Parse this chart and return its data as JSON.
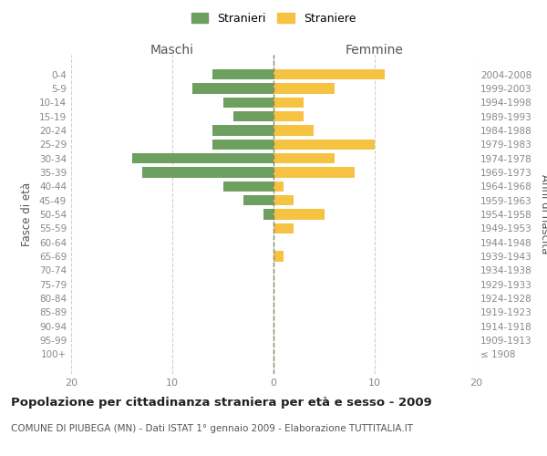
{
  "age_groups": [
    "100+",
    "95-99",
    "90-94",
    "85-89",
    "80-84",
    "75-79",
    "70-74",
    "65-69",
    "60-64",
    "55-59",
    "50-54",
    "45-49",
    "40-44",
    "35-39",
    "30-34",
    "25-29",
    "20-24",
    "15-19",
    "10-14",
    "5-9",
    "0-4"
  ],
  "birth_years": [
    "≤ 1908",
    "1909-1913",
    "1914-1918",
    "1919-1923",
    "1924-1928",
    "1929-1933",
    "1934-1938",
    "1939-1943",
    "1944-1948",
    "1949-1953",
    "1954-1958",
    "1959-1963",
    "1964-1968",
    "1969-1973",
    "1974-1978",
    "1979-1983",
    "1984-1988",
    "1989-1993",
    "1994-1998",
    "1999-2003",
    "2004-2008"
  ],
  "maschi": [
    0,
    0,
    0,
    0,
    0,
    0,
    0,
    0,
    0,
    0,
    1,
    3,
    5,
    13,
    14,
    6,
    6,
    4,
    5,
    8,
    6
  ],
  "femmine": [
    0,
    0,
    0,
    0,
    0,
    0,
    0,
    1,
    0,
    2,
    5,
    2,
    1,
    8,
    6,
    10,
    4,
    3,
    3,
    6,
    11
  ],
  "color_maschi": "#6d9f5e",
  "color_femmine": "#f5c242",
  "title": "Popolazione per cittadinanza straniera per età e sesso - 2009",
  "subtitle": "COMUNE DI PIUBEGA (MN) - Dati ISTAT 1° gennaio 2009 - Elaborazione TUTTITALIA.IT",
  "label_maschi": "Maschi",
  "label_femmine": "Femmine",
  "ylabel_left": "Fasce di età",
  "ylabel_right": "Anni di nascita",
  "xlim": 20,
  "legend_stranieri": "Stranieri",
  "legend_straniere": "Straniere",
  "background_color": "#ffffff",
  "grid_color": "#d0d0d0",
  "title_fontsize": 9.5,
  "subtitle_fontsize": 7.5
}
